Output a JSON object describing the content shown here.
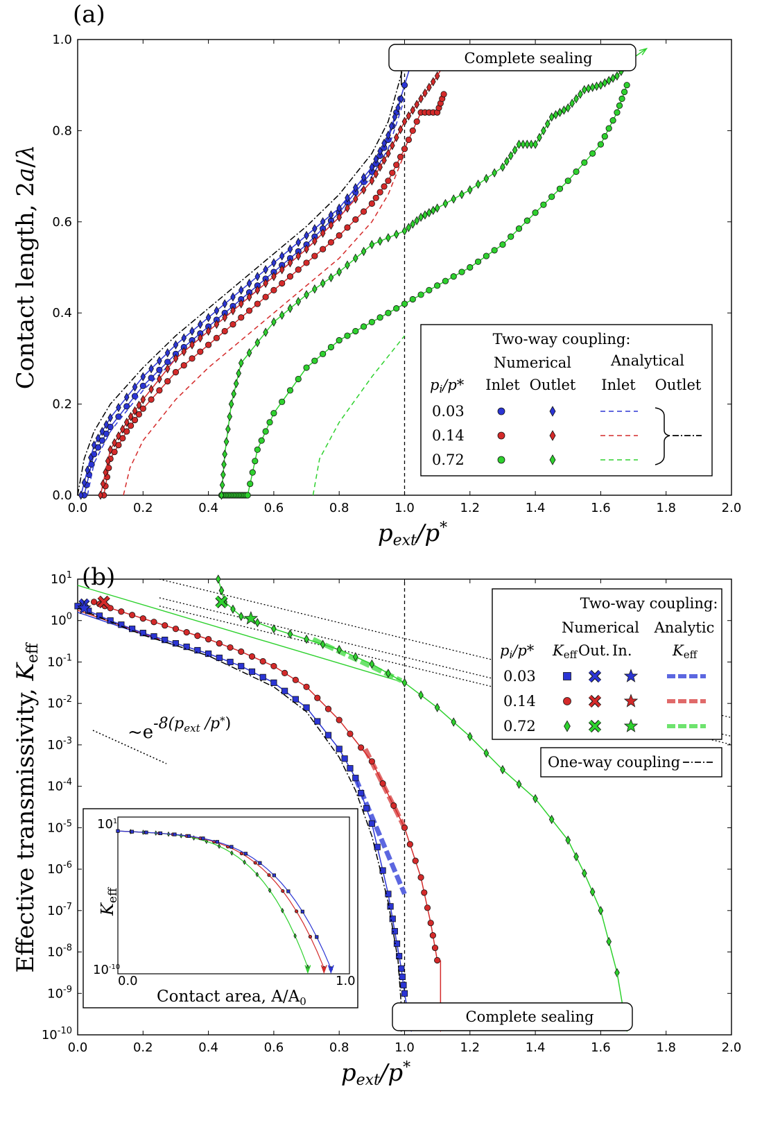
{
  "figure": {
    "panel_a_label": "(a)",
    "panel_b_label": "(b)"
  },
  "colors": {
    "blue": "#2b35d4",
    "red": "#d42a2a",
    "green": "#2ed12e",
    "black": "#000000",
    "blue_thick": "#5c67e0",
    "red_thick": "#e06a6a",
    "green_thick": "#6ee36e"
  },
  "chart_data": [
    {
      "type": "line",
      "panel": "(a)",
      "xlabel": "p_ext/p*",
      "ylabel": "Contact length, 2a/λ",
      "xlim": [
        0,
        2.0
      ],
      "ylim": [
        0,
        1.0
      ],
      "xticks": [
        "0.0",
        "0.2",
        "0.4",
        "0.6",
        "0.8",
        "1.0",
        "1.2",
        "1.4",
        "1.6",
        "1.8",
        "2.0"
      ],
      "yticks": [
        "0.0",
        "0.2",
        "0.4",
        "0.6",
        "0.8",
        "1.0"
      ],
      "annotation": "Complete sealing",
      "vertical_line_x": 1.0,
      "legend": {
        "title": "Two-way coupling:",
        "numerical": "Numerical",
        "analytical": "Analytical",
        "inlet": "Inlet",
        "outlet": "Outlet",
        "row_label": "p_i/p*",
        "rows": [
          "0.03",
          "0.14",
          "0.72"
        ]
      },
      "series": [
        {
          "name": "0.03 Inlet (numerical)",
          "color": "blue",
          "marker": "circle",
          "x": [
            0.02,
            0.05,
            0.1,
            0.2,
            0.3,
            0.4,
            0.5,
            0.6,
            0.7,
            0.8,
            0.9,
            0.95,
            1.0
          ],
          "y": [
            0.0,
            0.09,
            0.15,
            0.24,
            0.31,
            0.37,
            0.43,
            0.49,
            0.55,
            0.62,
            0.71,
            0.78,
            0.9
          ]
        },
        {
          "name": "0.03 Outlet (numerical)",
          "color": "blue",
          "marker": "diamond",
          "x": [
            0.01,
            0.05,
            0.1,
            0.2,
            0.3,
            0.4,
            0.5,
            0.6,
            0.7,
            0.8,
            0.9,
            0.95,
            0.99
          ],
          "y": [
            0.0,
            0.11,
            0.17,
            0.26,
            0.33,
            0.39,
            0.45,
            0.51,
            0.57,
            0.63,
            0.72,
            0.79,
            0.87
          ]
        },
        {
          "name": "0.03 analytical",
          "color": "blue",
          "style": "dashed",
          "x": [
            0.03,
            0.05,
            0.1,
            0.2,
            0.3,
            0.4,
            0.5,
            0.6,
            0.7,
            0.8,
            0.9,
            0.95,
            1.0
          ],
          "y": [
            0.0,
            0.07,
            0.14,
            0.23,
            0.3,
            0.36,
            0.42,
            0.48,
            0.54,
            0.61,
            0.7,
            0.76,
            0.87
          ]
        },
        {
          "name": "0.14 Inlet (numerical)",
          "color": "red",
          "marker": "circle",
          "x": [
            0.08,
            0.1,
            0.15,
            0.2,
            0.3,
            0.4,
            0.5,
            0.6,
            0.7,
            0.8,
            0.9,
            0.95,
            1.0,
            1.05,
            1.1,
            1.12
          ],
          "y": [
            0.0,
            0.08,
            0.14,
            0.19,
            0.27,
            0.33,
            0.39,
            0.45,
            0.51,
            0.57,
            0.64,
            0.69,
            0.76,
            0.84,
            0.84,
            0.88
          ]
        },
        {
          "name": "0.14 Outlet (numerical)",
          "color": "red",
          "marker": "diamond",
          "x": [
            0.07,
            0.1,
            0.15,
            0.2,
            0.3,
            0.4,
            0.5,
            0.6,
            0.7,
            0.8,
            0.9,
            0.95,
            1.0,
            1.05,
            1.1
          ],
          "y": [
            0.0,
            0.1,
            0.16,
            0.21,
            0.3,
            0.36,
            0.42,
            0.48,
            0.54,
            0.61,
            0.69,
            0.75,
            0.82,
            0.87,
            0.92
          ]
        },
        {
          "name": "0.14 analytical",
          "color": "red",
          "style": "dashed",
          "x": [
            0.14,
            0.16,
            0.2,
            0.3,
            0.4,
            0.5,
            0.6,
            0.7,
            0.8,
            0.9,
            0.95,
            1.0
          ],
          "y": [
            0.0,
            0.06,
            0.12,
            0.21,
            0.28,
            0.34,
            0.4,
            0.46,
            0.52,
            0.6,
            0.66,
            0.75
          ]
        },
        {
          "name": "0.72 Inlet (numerical)",
          "color": "green",
          "marker": "circle",
          "x": [
            0.44,
            0.46,
            0.48,
            0.5,
            0.52,
            0.55,
            0.6,
            0.7,
            0.8,
            0.9,
            1.0,
            1.1,
            1.2,
            1.3,
            1.4,
            1.5,
            1.6,
            1.65,
            1.68
          ],
          "y": [
            0.0,
            0.0,
            0.0,
            0.0,
            0.0,
            0.1,
            0.18,
            0.28,
            0.34,
            0.38,
            0.42,
            0.46,
            0.5,
            0.55,
            0.62,
            0.69,
            0.77,
            0.84,
            0.9
          ]
        },
        {
          "name": "0.72 Outlet (numerical)",
          "color": "green",
          "marker": "diamond",
          "x": [
            0.44,
            0.45,
            0.47,
            0.5,
            0.6,
            0.7,
            0.8,
            0.9,
            1.0,
            1.05,
            1.1,
            1.2,
            1.3,
            1.35,
            1.4,
            1.45,
            1.5,
            1.55,
            1.6,
            1.65,
            1.7
          ],
          "y": [
            0.0,
            0.09,
            0.2,
            0.29,
            0.38,
            0.44,
            0.49,
            0.55,
            0.58,
            0.61,
            0.63,
            0.67,
            0.72,
            0.77,
            0.77,
            0.83,
            0.85,
            0.89,
            0.9,
            0.92,
            0.96
          ]
        },
        {
          "name": "0.72 analytical",
          "color": "green",
          "style": "dashed",
          "x": [
            0.72,
            0.74,
            0.8,
            0.9,
            1.0
          ],
          "y": [
            0.0,
            0.08,
            0.16,
            0.26,
            0.35
          ]
        },
        {
          "name": "one-way coupling",
          "color": "black",
          "style": "dashdot",
          "x": [
            0.0,
            0.02,
            0.05,
            0.1,
            0.2,
            0.3,
            0.4,
            0.5,
            0.6,
            0.7,
            0.8,
            0.9,
            0.95,
            1.0
          ],
          "y": [
            0.0,
            0.08,
            0.14,
            0.2,
            0.28,
            0.35,
            0.41,
            0.47,
            0.53,
            0.59,
            0.66,
            0.75,
            0.82,
            0.95
          ]
        }
      ]
    },
    {
      "type": "line",
      "panel": "(b)",
      "xlabel": "p_ext/p*",
      "ylabel": "Effective transmissivity, K_eff",
      "xlim": [
        0,
        2.0
      ],
      "ylim_log10": [
        -10,
        1
      ],
      "xticks": [
        "0.0",
        "0.2",
        "0.4",
        "0.6",
        "0.8",
        "1.0",
        "1.2",
        "1.4",
        "1.6",
        "1.8",
        "2.0"
      ],
      "yticks": [
        "10^1",
        "10^0",
        "10^-1",
        "10^-2",
        "10^-3",
        "10^-4",
        "10^-5",
        "10^-6",
        "10^-7",
        "10^-8",
        "10^-9",
        "10^-10"
      ],
      "annotation": "Complete sealing",
      "slope_annotation": "~e^-8(p_ext/p*)",
      "vertical_line_x": 1.0,
      "legend": {
        "title": "Two-way coupling:",
        "numerical": "Numerical",
        "analytic": "Analytic",
        "row_label": "p_i/p*",
        "keff": "K_eff",
        "out": "Out.",
        "in": "In.",
        "rows": [
          "0.03",
          "0.14",
          "0.72"
        ],
        "one_way": "One-way coupling"
      },
      "series": [
        {
          "name": "0.03 K_eff",
          "color": "blue",
          "marker": "square",
          "x": [
            0.0,
            0.1,
            0.2,
            0.3,
            0.4,
            0.5,
            0.6,
            0.7,
            0.8,
            0.85,
            0.9,
            0.95,
            0.97,
            0.99,
            1.0
          ],
          "log10y": [
            0.35,
            0.0,
            -0.3,
            -0.55,
            -0.8,
            -1.1,
            -1.5,
            -2.1,
            -3.1,
            -3.8,
            -4.9,
            -6.6,
            -7.5,
            -8.4,
            -9.0
          ]
        },
        {
          "name": "0.14 K_eff",
          "color": "red",
          "marker": "circle",
          "x": [
            0.05,
            0.1,
            0.2,
            0.3,
            0.4,
            0.5,
            0.6,
            0.7,
            0.8,
            0.9,
            1.0,
            1.05,
            1.08,
            1.1
          ],
          "log10y": [
            0.45,
            0.3,
            0.05,
            -0.2,
            -0.45,
            -0.75,
            -1.1,
            -1.6,
            -2.4,
            -3.4,
            -5.0,
            -6.2,
            -7.3,
            -8.2
          ]
        },
        {
          "name": "0.72 K_eff",
          "color": "green",
          "marker": "diamond",
          "x": [
            0.43,
            0.45,
            0.5,
            0.6,
            0.7,
            0.8,
            0.9,
            1.0,
            1.1,
            1.2,
            1.3,
            1.4,
            1.5,
            1.55,
            1.6,
            1.65
          ],
          "log10y": [
            1.0,
            0.45,
            0.1,
            -0.2,
            -0.45,
            -0.7,
            -1.05,
            -1.5,
            -2.1,
            -2.8,
            -3.6,
            -4.3,
            -5.3,
            -6.1,
            -7.0,
            -8.5
          ]
        },
        {
          "name": "one-way coupling",
          "color": "black",
          "style": "dashdot",
          "x": [
            0.0,
            0.2,
            0.4,
            0.6,
            0.7,
            0.8,
            0.85,
            0.9,
            0.95,
            0.98,
            0.99
          ],
          "log10y": [
            0.3,
            -0.35,
            -0.85,
            -1.6,
            -2.2,
            -3.3,
            -4.1,
            -5.2,
            -6.8,
            -8.2,
            -9.3
          ]
        }
      ],
      "inset": {
        "xlabel": "Contact area, A/A_0",
        "ylabel": "K_eff",
        "xlim": [
          0.0,
          1.0
        ],
        "xticks": [
          "0.0",
          "1.0"
        ],
        "yticks": [
          "10^1",
          "10^-10"
        ]
      }
    }
  ]
}
